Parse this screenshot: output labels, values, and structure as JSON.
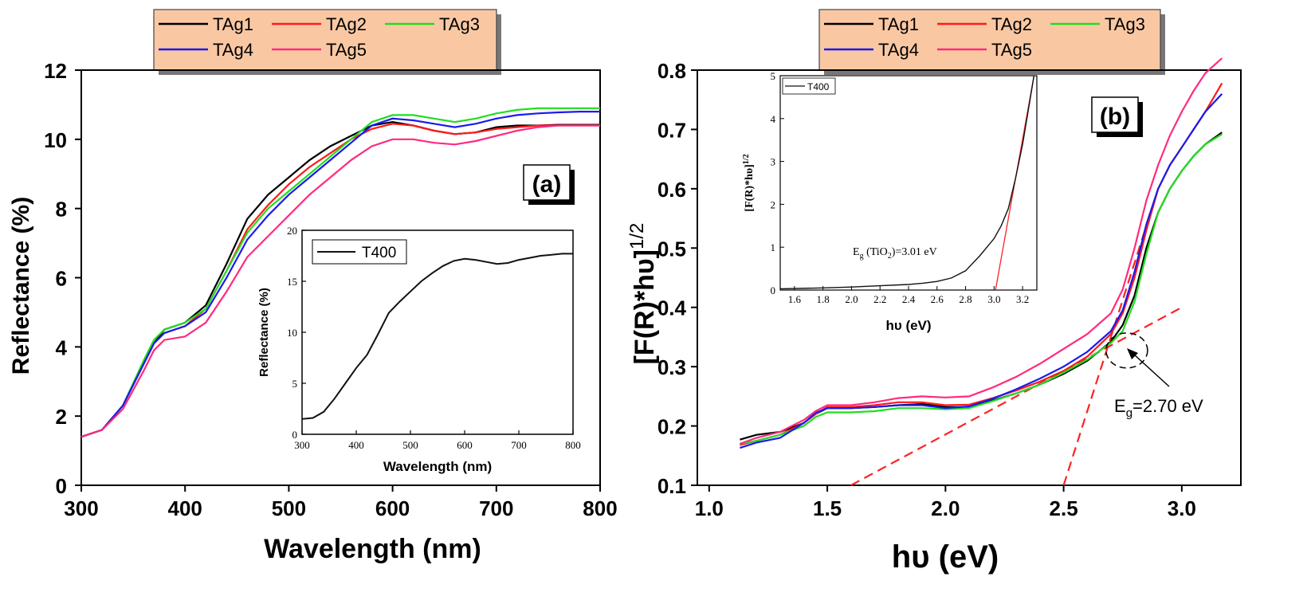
{
  "colors": {
    "TAg1": "#000000",
    "TAg2": "#ff1a1a",
    "TAg3": "#22dd22",
    "TAg4": "#1a1aee",
    "TAg5": "#ff2a7f",
    "legend_bg": "#f9c8a3",
    "fit_line": "#ff2222"
  },
  "chart_data": [
    {
      "type": "line",
      "panel_label": "(a)",
      "title": "",
      "xlabel": "Wavelength (nm)",
      "ylabel": "Reflectance (%)",
      "xlim": [
        300,
        800
      ],
      "ylim": [
        0,
        12
      ],
      "xticks": [
        300,
        400,
        500,
        600,
        700,
        800
      ],
      "yticks": [
        0,
        2,
        4,
        6,
        8,
        10,
        12
      ],
      "legend": [
        "TAg1",
        "TAg2",
        "TAg3",
        "TAg4",
        "TAg5"
      ],
      "x": [
        300,
        320,
        340,
        360,
        370,
        380,
        400,
        420,
        440,
        460,
        480,
        500,
        520,
        540,
        560,
        580,
        600,
        620,
        640,
        660,
        680,
        700,
        720,
        740,
        760,
        780,
        800
      ],
      "series": [
        {
          "name": "TAg1",
          "values": [
            1.4,
            1.6,
            2.3,
            3.5,
            4.1,
            4.5,
            4.7,
            5.2,
            6.4,
            7.7,
            8.4,
            8.9,
            9.4,
            9.8,
            10.1,
            10.4,
            10.5,
            10.4,
            10.25,
            10.15,
            10.2,
            10.35,
            10.4,
            10.4,
            10.42,
            10.42,
            10.42
          ]
        },
        {
          "name": "TAg2",
          "values": [
            1.4,
            1.6,
            2.3,
            3.5,
            4.1,
            4.4,
            4.6,
            5.1,
            6.2,
            7.4,
            8.1,
            8.7,
            9.2,
            9.6,
            10.0,
            10.3,
            10.45,
            10.4,
            10.25,
            10.15,
            10.2,
            10.3,
            10.35,
            10.4,
            10.4,
            10.4,
            10.4
          ]
        },
        {
          "name": "TAg3",
          "values": [
            1.4,
            1.6,
            2.3,
            3.6,
            4.2,
            4.5,
            4.7,
            5.1,
            6.2,
            7.3,
            8.0,
            8.5,
            9.0,
            9.5,
            10.0,
            10.5,
            10.7,
            10.7,
            10.6,
            10.5,
            10.6,
            10.75,
            10.85,
            10.9,
            10.9,
            10.9,
            10.9
          ]
        },
        {
          "name": "TAg4",
          "values": [
            1.4,
            1.6,
            2.3,
            3.5,
            4.1,
            4.4,
            4.6,
            5.0,
            6.0,
            7.1,
            7.8,
            8.4,
            8.9,
            9.4,
            9.9,
            10.4,
            10.6,
            10.55,
            10.45,
            10.35,
            10.45,
            10.6,
            10.7,
            10.75,
            10.78,
            10.8,
            10.8
          ]
        },
        {
          "name": "TAg5",
          "values": [
            1.4,
            1.6,
            2.2,
            3.3,
            3.9,
            4.2,
            4.3,
            4.7,
            5.6,
            6.6,
            7.2,
            7.8,
            8.4,
            8.9,
            9.4,
            9.8,
            10.0,
            10.0,
            9.9,
            9.85,
            9.95,
            10.1,
            10.25,
            10.35,
            10.4,
            10.4,
            10.4
          ]
        }
      ],
      "inset": {
        "type": "line",
        "legend": [
          "T400"
        ],
        "xlabel": "Wavelength (nm)",
        "ylabel": "Reflectance (%)",
        "xlim": [
          300,
          800
        ],
        "ylim": [
          0,
          20
        ],
        "xticks": [
          300,
          400,
          500,
          600,
          700,
          800
        ],
        "yticks": [
          0,
          5,
          10,
          15,
          20
        ],
        "x": [
          300,
          320,
          340,
          360,
          380,
          400,
          420,
          440,
          460,
          480,
          500,
          520,
          540,
          560,
          580,
          600,
          620,
          640,
          660,
          680,
          700,
          720,
          740,
          760,
          780,
          800
        ],
        "series": [
          {
            "name": "T400",
            "values": [
              1.5,
              1.6,
              2.2,
              3.5,
              5.0,
              6.5,
              7.8,
              9.8,
              11.9,
              13.0,
              14.0,
              15.0,
              15.8,
              16.5,
              17.0,
              17.2,
              17.1,
              16.9,
              16.7,
              16.8,
              17.1,
              17.3,
              17.5,
              17.6,
              17.7,
              17.7
            ]
          }
        ]
      }
    },
    {
      "type": "line",
      "panel_label": "(b)",
      "title": "",
      "xlabel": "hυ (eV)",
      "ylabel_main": "[F(R)*hυ]",
      "ylabel_sup": "1/2",
      "xlim": [
        0.95,
        3.25
      ],
      "ylim": [
        0.1,
        0.8
      ],
      "xticks": [
        "1.0",
        "1.5",
        "2.0",
        "2.5",
        "3.0"
      ],
      "yticks": [
        "0.1",
        "0.2",
        "0.3",
        "0.4",
        "0.5",
        "0.6",
        "0.7",
        "0.8"
      ],
      "legend": [
        "TAg1",
        "TAg2",
        "TAg3",
        "TAg4",
        "TAg5"
      ],
      "annotation": {
        "prefix": "E",
        "sub": "g",
        "suffix": "=2.70 eV",
        "value_ev": 2.7
      },
      "x": [
        1.13,
        1.2,
        1.3,
        1.4,
        1.45,
        1.5,
        1.6,
        1.7,
        1.8,
        1.9,
        2.0,
        2.1,
        2.2,
        2.3,
        2.4,
        2.5,
        2.6,
        2.7,
        2.75,
        2.8,
        2.85,
        2.9,
        2.95,
        3.0,
        3.05,
        3.1,
        3.17
      ],
      "series": [
        {
          "name": "TAg1",
          "values": [
            0.177,
            0.185,
            0.19,
            0.205,
            0.22,
            0.23,
            0.23,
            0.232,
            0.235,
            0.237,
            0.232,
            0.232,
            0.243,
            0.255,
            0.27,
            0.288,
            0.31,
            0.342,
            0.37,
            0.42,
            0.5,
            0.56,
            0.6,
            0.63,
            0.655,
            0.675,
            0.695
          ]
        },
        {
          "name": "TAg2",
          "values": [
            0.168,
            0.175,
            0.185,
            0.205,
            0.22,
            0.232,
            0.232,
            0.235,
            0.24,
            0.24,
            0.235,
            0.236,
            0.247,
            0.26,
            0.275,
            0.293,
            0.317,
            0.355,
            0.39,
            0.45,
            0.53,
            0.6,
            0.64,
            0.67,
            0.7,
            0.73,
            0.778
          ]
        },
        {
          "name": "TAg3",
          "values": [
            0.17,
            0.175,
            0.185,
            0.2,
            0.215,
            0.223,
            0.223,
            0.225,
            0.23,
            0.23,
            0.228,
            0.23,
            0.242,
            0.255,
            0.27,
            0.29,
            0.312,
            0.34,
            0.36,
            0.41,
            0.49,
            0.56,
            0.6,
            0.63,
            0.655,
            0.675,
            0.692
          ]
        },
        {
          "name": "TAg4",
          "values": [
            0.163,
            0.172,
            0.18,
            0.205,
            0.222,
            0.23,
            0.23,
            0.232,
            0.235,
            0.235,
            0.23,
            0.233,
            0.246,
            0.262,
            0.28,
            0.3,
            0.325,
            0.36,
            0.395,
            0.46,
            0.54,
            0.6,
            0.64,
            0.67,
            0.7,
            0.73,
            0.76
          ]
        },
        {
          "name": "TAg5",
          "values": [
            0.17,
            0.18,
            0.19,
            0.21,
            0.225,
            0.235,
            0.235,
            0.24,
            0.247,
            0.25,
            0.248,
            0.25,
            0.265,
            0.283,
            0.305,
            0.33,
            0.355,
            0.39,
            0.43,
            0.5,
            0.58,
            0.64,
            0.69,
            0.73,
            0.765,
            0.795,
            0.82
          ]
        }
      ],
      "fit_lines": [
        {
          "x": [
            1.6,
            3.0
          ],
          "y": [
            0.1,
            0.4
          ]
        },
        {
          "x": [
            2.5,
            2.9
          ],
          "y": [
            0.1,
            0.6
          ]
        }
      ],
      "inset": {
        "type": "line",
        "legend": [
          "T400"
        ],
        "xlabel": "hυ (eV)",
        "ylabel_main": "[F(R)*hυ]",
        "ylabel_sup": "1/2",
        "annotation": {
          "prefix": "E",
          "sub": "g",
          "mid": " (TiO",
          "sub2": "2",
          "suffix": ")=3.01 eV",
          "value_ev": 3.01
        },
        "xlim": [
          1.5,
          3.3
        ],
        "ylim": [
          0,
          5
        ],
        "xticks": [
          "1.6",
          "1.8",
          "2.0",
          "2.2",
          "2.4",
          "2.6",
          "2.8",
          "3.0",
          "3.2"
        ],
        "yticks": [
          "0",
          "1",
          "2",
          "3",
          "4",
          "5"
        ],
        "x": [
          1.5,
          1.8,
          2.0,
          2.2,
          2.4,
          2.5,
          2.6,
          2.7,
          2.8,
          2.9,
          3.0,
          3.05,
          3.1,
          3.15,
          3.2,
          3.25,
          3.28
        ],
        "series": [
          {
            "name": "T400",
            "values": [
              0.03,
              0.05,
              0.07,
              0.1,
              0.13,
              0.16,
              0.2,
              0.28,
              0.45,
              0.8,
              1.2,
              1.5,
              1.9,
              2.6,
              3.4,
              4.4,
              5.0
            ]
          }
        ],
        "fit_line": {
          "x": [
            3.01,
            3.28
          ],
          "y": [
            0,
            5
          ]
        }
      }
    }
  ]
}
